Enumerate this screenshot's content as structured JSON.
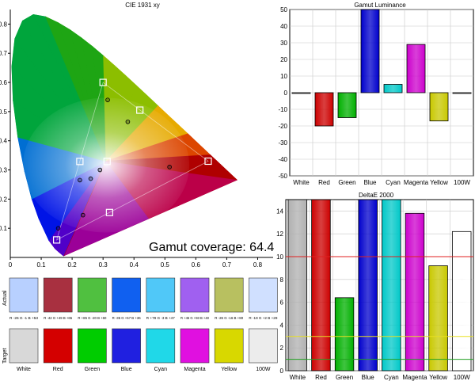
{
  "chart_data": [
    {
      "type": "scatter",
      "title": "CIE 1931 xy",
      "xlabel": "",
      "ylabel": "",
      "xlim": [
        0,
        0.85
      ],
      "ylim": [
        0,
        0.85
      ],
      "x_ticks": [
        "0",
        "0.1",
        "0.2",
        "0.3",
        "0.4",
        "0.5",
        "0.6",
        "0.7",
        "0.8"
      ],
      "y_ticks": [
        "0.1",
        "0.2",
        "0.3",
        "0.4",
        "0.5",
        "0.6",
        "0.7",
        "0.8"
      ],
      "annotation": "Gamut coverage: 64.4",
      "target_points": [
        {
          "name": "White",
          "x": 0.313,
          "y": 0.329
        },
        {
          "name": "Red",
          "x": 0.64,
          "y": 0.33
        },
        {
          "name": "Green",
          "x": 0.3,
          "y": 0.6
        },
        {
          "name": "Blue",
          "x": 0.15,
          "y": 0.06
        },
        {
          "name": "Cyan",
          "x": 0.225,
          "y": 0.329
        },
        {
          "name": "Magenta",
          "x": 0.321,
          "y": 0.154
        },
        {
          "name": "Yellow",
          "x": 0.419,
          "y": 0.505
        }
      ],
      "actual_points": [
        {
          "name": "Red",
          "x": 0.515,
          "y": 0.31
        },
        {
          "name": "Green",
          "x": 0.315,
          "y": 0.54
        },
        {
          "name": "Blue",
          "x": 0.155,
          "y": 0.1
        },
        {
          "name": "Cyan",
          "x": 0.225,
          "y": 0.265
        },
        {
          "name": "Magenta",
          "x": 0.235,
          "y": 0.145
        },
        {
          "name": "Yellow",
          "x": 0.38,
          "y": 0.465
        },
        {
          "name": "White",
          "x": 0.29,
          "y": 0.3
        },
        {
          "name": "White",
          "x": 0.26,
          "y": 0.27
        }
      ]
    },
    {
      "type": "bar",
      "title": "Gamut Luminance",
      "categories": [
        "White",
        "Red",
        "Green",
        "Blue",
        "Cyan",
        "Magenta",
        "Yellow",
        "100W"
      ],
      "values": [
        0,
        -20,
        -15,
        50,
        5,
        29,
        -17,
        0
      ],
      "colors": [
        "#ffffff",
        "#cc0000",
        "#00b000",
        "#0000cc",
        "#00c8c8",
        "#cc00cc",
        "#c8c800",
        "#ffffff"
      ],
      "ylim": [
        -50,
        50
      ],
      "y_ticks": [
        "50",
        "40",
        "30",
        "20",
        "10",
        "0",
        "-10",
        "-20",
        "-30",
        "-40",
        "-50"
      ]
    },
    {
      "type": "bar",
      "title": "DeltaE 2000",
      "categories": [
        "White",
        "Red",
        "Green",
        "Blue",
        "Cyan",
        "Magenta",
        "Yellow",
        "100W"
      ],
      "values": [
        15,
        15,
        6.4,
        15,
        15,
        13.8,
        9.2,
        12.2
      ],
      "colors": [
        "#b0b0b0",
        "#cc0000",
        "#00b000",
        "#0000cc",
        "#00c8c8",
        "#cc00cc",
        "#c8c800",
        "#ffffff"
      ],
      "ylim": [
        0,
        15
      ],
      "y_ticks": [
        "14",
        "12",
        "10",
        "8",
        "6",
        "4",
        "2",
        "0"
      ],
      "reference_lines": [
        {
          "value": 10,
          "color": "#e02020"
        },
        {
          "value": 3,
          "color": "#e8e020"
        },
        {
          "value": 1,
          "color": "#20a020"
        }
      ]
    }
  ],
  "swatches": {
    "row_labels": [
      "Actual",
      "Target"
    ],
    "items": [
      {
        "name": "White",
        "actual": "#b8d0ff",
        "target": "#d8d8d8",
        "delta": "R -26 G -1 B +53"
      },
      {
        "name": "Red",
        "actual": "#a83040",
        "target": "#d40000",
        "delta": "R -42 G +49 B +65"
      },
      {
        "name": "Green",
        "actual": "#50c040",
        "target": "#00cc00",
        "delta": "R +85 G -20 B +60"
      },
      {
        "name": "Blue",
        "actual": "#1060f0",
        "target": "#2020e0",
        "delta": "R -35 G +57 B +36"
      },
      {
        "name": "Cyan",
        "actual": "#50c8f8",
        "target": "#20d8e8",
        "delta": "R +78 G -3 B +47"
      },
      {
        "name": "Magenta",
        "actual": "#a060f0",
        "target": "#e010e0",
        "delta": "R +45 G +93 B +40"
      },
      {
        "name": "Yellow",
        "actual": "#b8c060",
        "target": "#d8d800",
        "delta": "R -26 G -16 B +80"
      },
      {
        "name": "100W",
        "actual": "#d0e0ff",
        "target": "#ececec",
        "delta": "R -19 G +2 B +29"
      }
    ]
  }
}
